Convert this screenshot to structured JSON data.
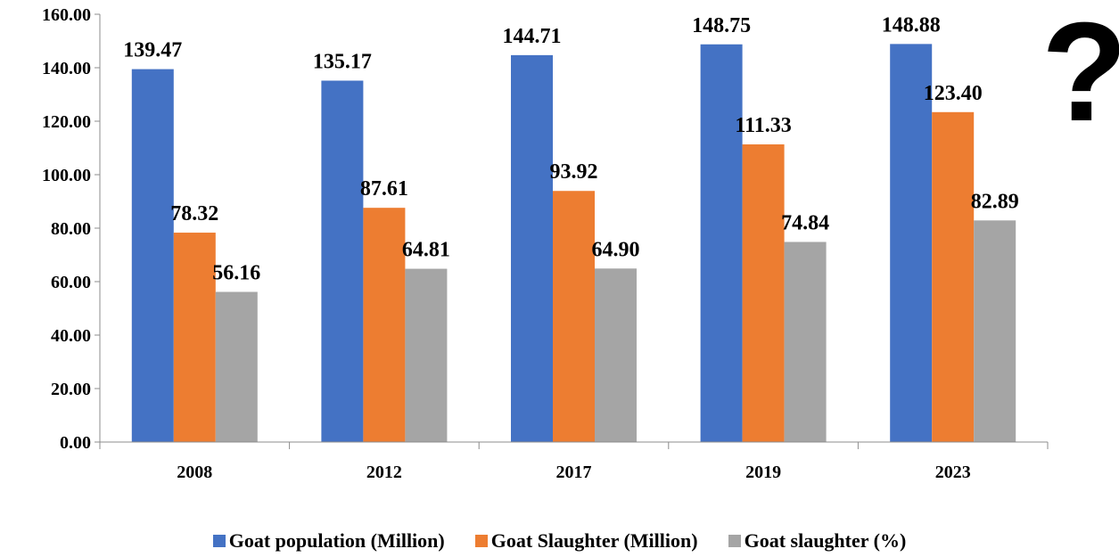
{
  "chart_data": {
    "type": "bar",
    "categories": [
      "2008",
      "2012",
      "2017",
      "2019",
      "2023"
    ],
    "series": [
      {
        "name": "Goat population (Million)",
        "values": [
          139.47,
          135.17,
          144.71,
          148.75,
          148.88
        ],
        "color": "#4472C4"
      },
      {
        "name": "Goat Slaughter (Million)",
        "values": [
          78.32,
          87.61,
          93.92,
          111.33,
          123.4
        ],
        "color": "#ED7D31"
      },
      {
        "name": "Goat slaughter (%)",
        "values": [
          56.16,
          64.81,
          64.9,
          74.84,
          82.89
        ],
        "color": "#A5A5A5"
      }
    ],
    "value_labels": [
      [
        "139.47",
        "135.17",
        "144.71",
        "148.75",
        "148.88"
      ],
      [
        "78.32",
        "87.61",
        "93.92",
        "111.33",
        "123.40"
      ],
      [
        "56.16",
        "64.81",
        "64.90",
        "74.84",
        "82.89"
      ]
    ],
    "ylim": [
      0,
      160
    ],
    "yticks": [
      "0.00",
      "20.00",
      "40.00",
      "60.00",
      "80.00",
      "100.00",
      "120.00",
      "140.00",
      "160.00"
    ],
    "grid": false,
    "legend_position": "bottom"
  },
  "decoration": {
    "question_mark": "?"
  }
}
